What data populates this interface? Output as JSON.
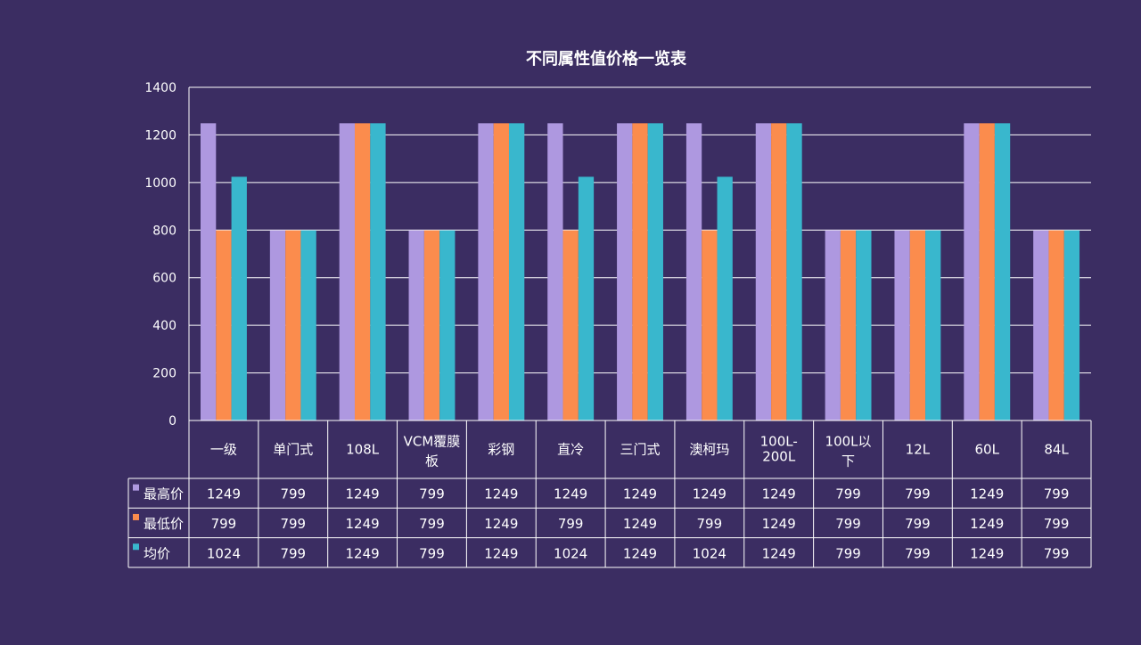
{
  "chart_data": {
    "type": "bar",
    "title": "不同属性值价格一览表",
    "xlabel": "",
    "ylabel": "",
    "ylim": [
      0,
      1400
    ],
    "yticks": [
      0,
      200,
      400,
      600,
      800,
      1000,
      1200,
      1400
    ],
    "grid": true,
    "legend": "data-table-left",
    "categories": [
      "一级",
      "单门式",
      "108L",
      "VCM覆膜板",
      "彩钢",
      "直冷",
      "三门式",
      "澳柯玛",
      "100L-200L",
      "100L以下",
      "12L",
      "60L",
      "84L"
    ],
    "series": [
      {
        "name": "最高价",
        "color": "#ae98e0",
        "values": [
          1249,
          799,
          1249,
          799,
          1249,
          1249,
          1249,
          1249,
          1249,
          799,
          799,
          1249,
          799
        ]
      },
      {
        "name": "最低价",
        "color": "#fb8c4d",
        "values": [
          799,
          799,
          1249,
          799,
          1249,
          799,
          1249,
          799,
          1249,
          799,
          799,
          1249,
          799
        ]
      },
      {
        "name": "均价",
        "color": "#39b7cd",
        "values": [
          1024,
          799,
          1249,
          799,
          1249,
          1024,
          1249,
          1024,
          1249,
          799,
          799,
          1249,
          799
        ]
      }
    ]
  },
  "colors": {
    "background": "#3b2d62",
    "text": "#ffffff",
    "grid": "#ffffff"
  }
}
